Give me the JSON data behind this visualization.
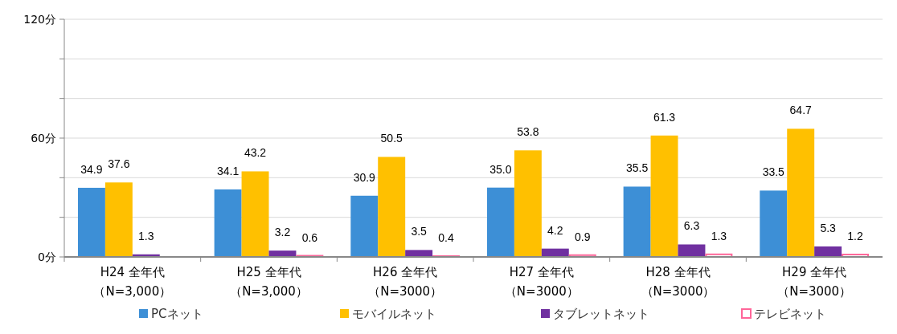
{
  "chart_data": {
    "type": "bar",
    "categories": [
      "H24 全年代（N=3,000）",
      "H25 全年代（N=3,000）",
      "H26 全年代（N=3000）",
      "H27 全年代（N=3000）",
      "H28 全年代（N=3000）",
      "H29 全年代（N=3000）"
    ],
    "series": [
      {
        "name": "PCネット",
        "color": "#3d8fd6",
        "values": [
          34.9,
          34.1,
          30.9,
          35.0,
          35.5,
          33.5
        ],
        "value_labels": [
          "34.9",
          "34.1",
          "30.9",
          "35.0",
          "35.5",
          "33.5"
        ]
      },
      {
        "name": "モバイルネット",
        "color": "#ffc000",
        "values": [
          37.6,
          43.2,
          50.5,
          53.8,
          61.3,
          64.7
        ],
        "value_labels": [
          "37.6",
          "43.2",
          "50.5",
          "53.8",
          "61.3",
          "64.7"
        ]
      },
      {
        "name": "タブレットネット",
        "color": "#7030a0",
        "values": [
          1.3,
          3.2,
          3.5,
          4.2,
          6.3,
          5.3
        ],
        "value_labels": [
          "1.3",
          "3.2",
          "3.5",
          "4.2",
          "6.3",
          "5.3"
        ]
      },
      {
        "name": "テレビネット",
        "color": "#ff6699",
        "values": [
          null,
          0.6,
          0.4,
          0.9,
          1.3,
          1.2
        ],
        "value_labels": [
          null,
          "0.6",
          "0.4",
          "0.9",
          "1.3",
          "1.2"
        ]
      }
    ],
    "ylim": [
      0,
      120
    ],
    "yticks": [
      {
        "value": 0,
        "label": "0分"
      },
      {
        "value": 20,
        "label": null
      },
      {
        "value": 40,
        "label": null
      },
      {
        "value": 60,
        "label": "60分"
      },
      {
        "value": 80,
        "label": null
      },
      {
        "value": 100,
        "label": null
      },
      {
        "value": 120,
        "label": "120分"
      }
    ],
    "grid": "y",
    "legend": "bottom"
  }
}
